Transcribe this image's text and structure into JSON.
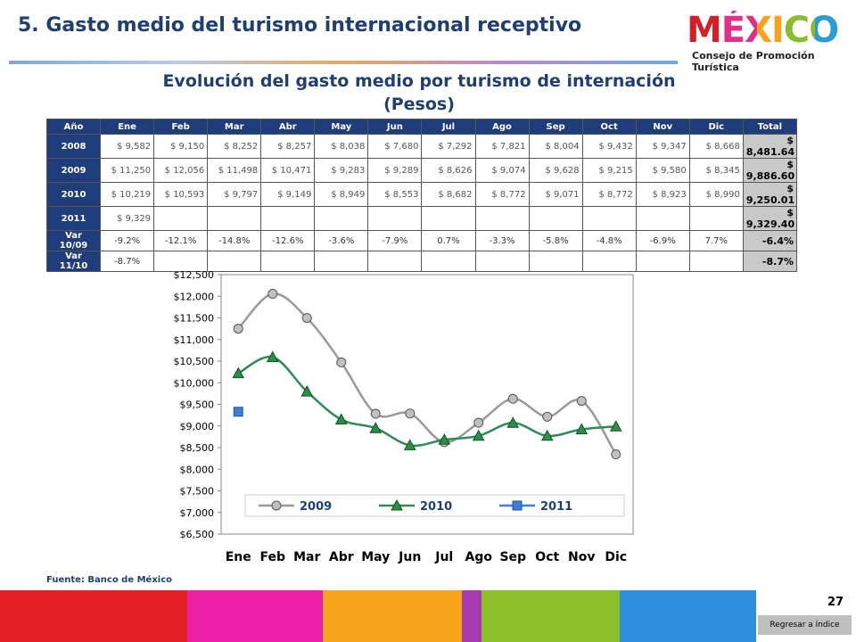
{
  "header": {
    "title": "5. Gasto medio del turismo internacional receptivo",
    "logo": "MÉXICO",
    "logo_subtitle": "Consejo de Promoción Turística"
  },
  "table": {
    "title": "Evolución del gasto medio por turismo de internación",
    "subtitle": "(Pesos)",
    "columns": [
      "Año",
      "Ene",
      "Feb",
      "Mar",
      "Abr",
      "May",
      "Jun",
      "Jul",
      "Ago",
      "Sep",
      "Oct",
      "Nov",
      "Dic",
      "Total"
    ],
    "rows": [
      {
        "label": "2008",
        "cells": [
          "$ 9,582",
          "$ 9,150",
          "$ 8,252",
          "$ 8,257",
          "$ 8,038",
          "$ 7,680",
          "$ 7,292",
          "$ 7,821",
          "$ 8,004",
          "$ 9,432",
          "$ 9,347",
          "$ 8,668"
        ],
        "total": "$ 8,481.64"
      },
      {
        "label": "2009",
        "cells": [
          "$ 11,250",
          "$ 12,056",
          "$ 11,498",
          "$ 10,471",
          "$ 9,283",
          "$ 9,289",
          "$ 8,626",
          "$ 9,074",
          "$ 9,628",
          "$ 9,215",
          "$ 9,580",
          "$ 8,345"
        ],
        "total": "$ 9,886.60"
      },
      {
        "label": "2010",
        "cells": [
          "$ 10,219",
          "$ 10,593",
          "$ 9,797",
          "$ 9,149",
          "$ 8,949",
          "$ 8,553",
          "$ 8,682",
          "$ 8,772",
          "$ 9,071",
          "$ 8,772",
          "$ 8,923",
          "$ 8,990"
        ],
        "total": "$ 9,250.01"
      },
      {
        "label": "2011",
        "cells": [
          "$ 9,329"
        ],
        "total": "$ 9,329.40"
      },
      {
        "label": "Var 10/09",
        "cells": [
          "-9.2%",
          "-12.1%",
          "-14.8%",
          "-12.6%",
          "-3.6%",
          "-7.9%",
          "0.7%",
          "-3.3%",
          "-5.8%",
          "-4.8%",
          "-6.9%",
          "7.7%"
        ],
        "total": "-6.4%"
      },
      {
        "label": "Var 11/10",
        "cells": [
          "-8.7%"
        ],
        "total": "-8.7%"
      }
    ]
  },
  "chart_data": {
    "type": "line",
    "categories": [
      "Ene",
      "Feb",
      "Mar",
      "Abr",
      "May",
      "Jun",
      "Jul",
      "Ago",
      "Sep",
      "Oct",
      "Nov",
      "Dic"
    ],
    "series": [
      {
        "name": "2009",
        "color": "#999999",
        "values": [
          11250,
          12056,
          11498,
          10471,
          9283,
          9289,
          8626,
          9074,
          9628,
          9215,
          9580,
          8345
        ]
      },
      {
        "name": "2010",
        "color": "#2e8b57",
        "values": [
          10219,
          10593,
          9797,
          9149,
          8949,
          8553,
          8682,
          8772,
          9071,
          8772,
          8923,
          8990
        ]
      },
      {
        "name": "2011",
        "color": "#3b7fd9",
        "values": [
          9329,
          null,
          null,
          null,
          null,
          null,
          null,
          null,
          null,
          null,
          null,
          null
        ]
      }
    ],
    "ylim": [
      6500,
      12500
    ],
    "yticks": [
      {
        "value": 6500,
        "label": "$6,500"
      },
      {
        "value": 7000,
        "label": "$7,000"
      },
      {
        "value": 7500,
        "label": "$7,500"
      },
      {
        "value": 8000,
        "label": "$8,000"
      },
      {
        "value": 8500,
        "label": "$8,500"
      },
      {
        "value": 9000,
        "label": "$9,000"
      },
      {
        "value": 9500,
        "label": "$9,500"
      },
      {
        "value": 10000,
        "label": "$10,000"
      },
      {
        "value": 10500,
        "label": "$10,500"
      },
      {
        "value": 11000,
        "label": "$11,000"
      },
      {
        "value": 11500,
        "label": "$11,500"
      },
      {
        "value": 12000,
        "label": "$12,000"
      },
      {
        "value": 12500,
        "label": "$12,500"
      }
    ],
    "grid": false,
    "legend": "bottom"
  },
  "footer": {
    "source": "Fuente: Banco de México",
    "page": "27",
    "button": "Regresar a índice"
  }
}
